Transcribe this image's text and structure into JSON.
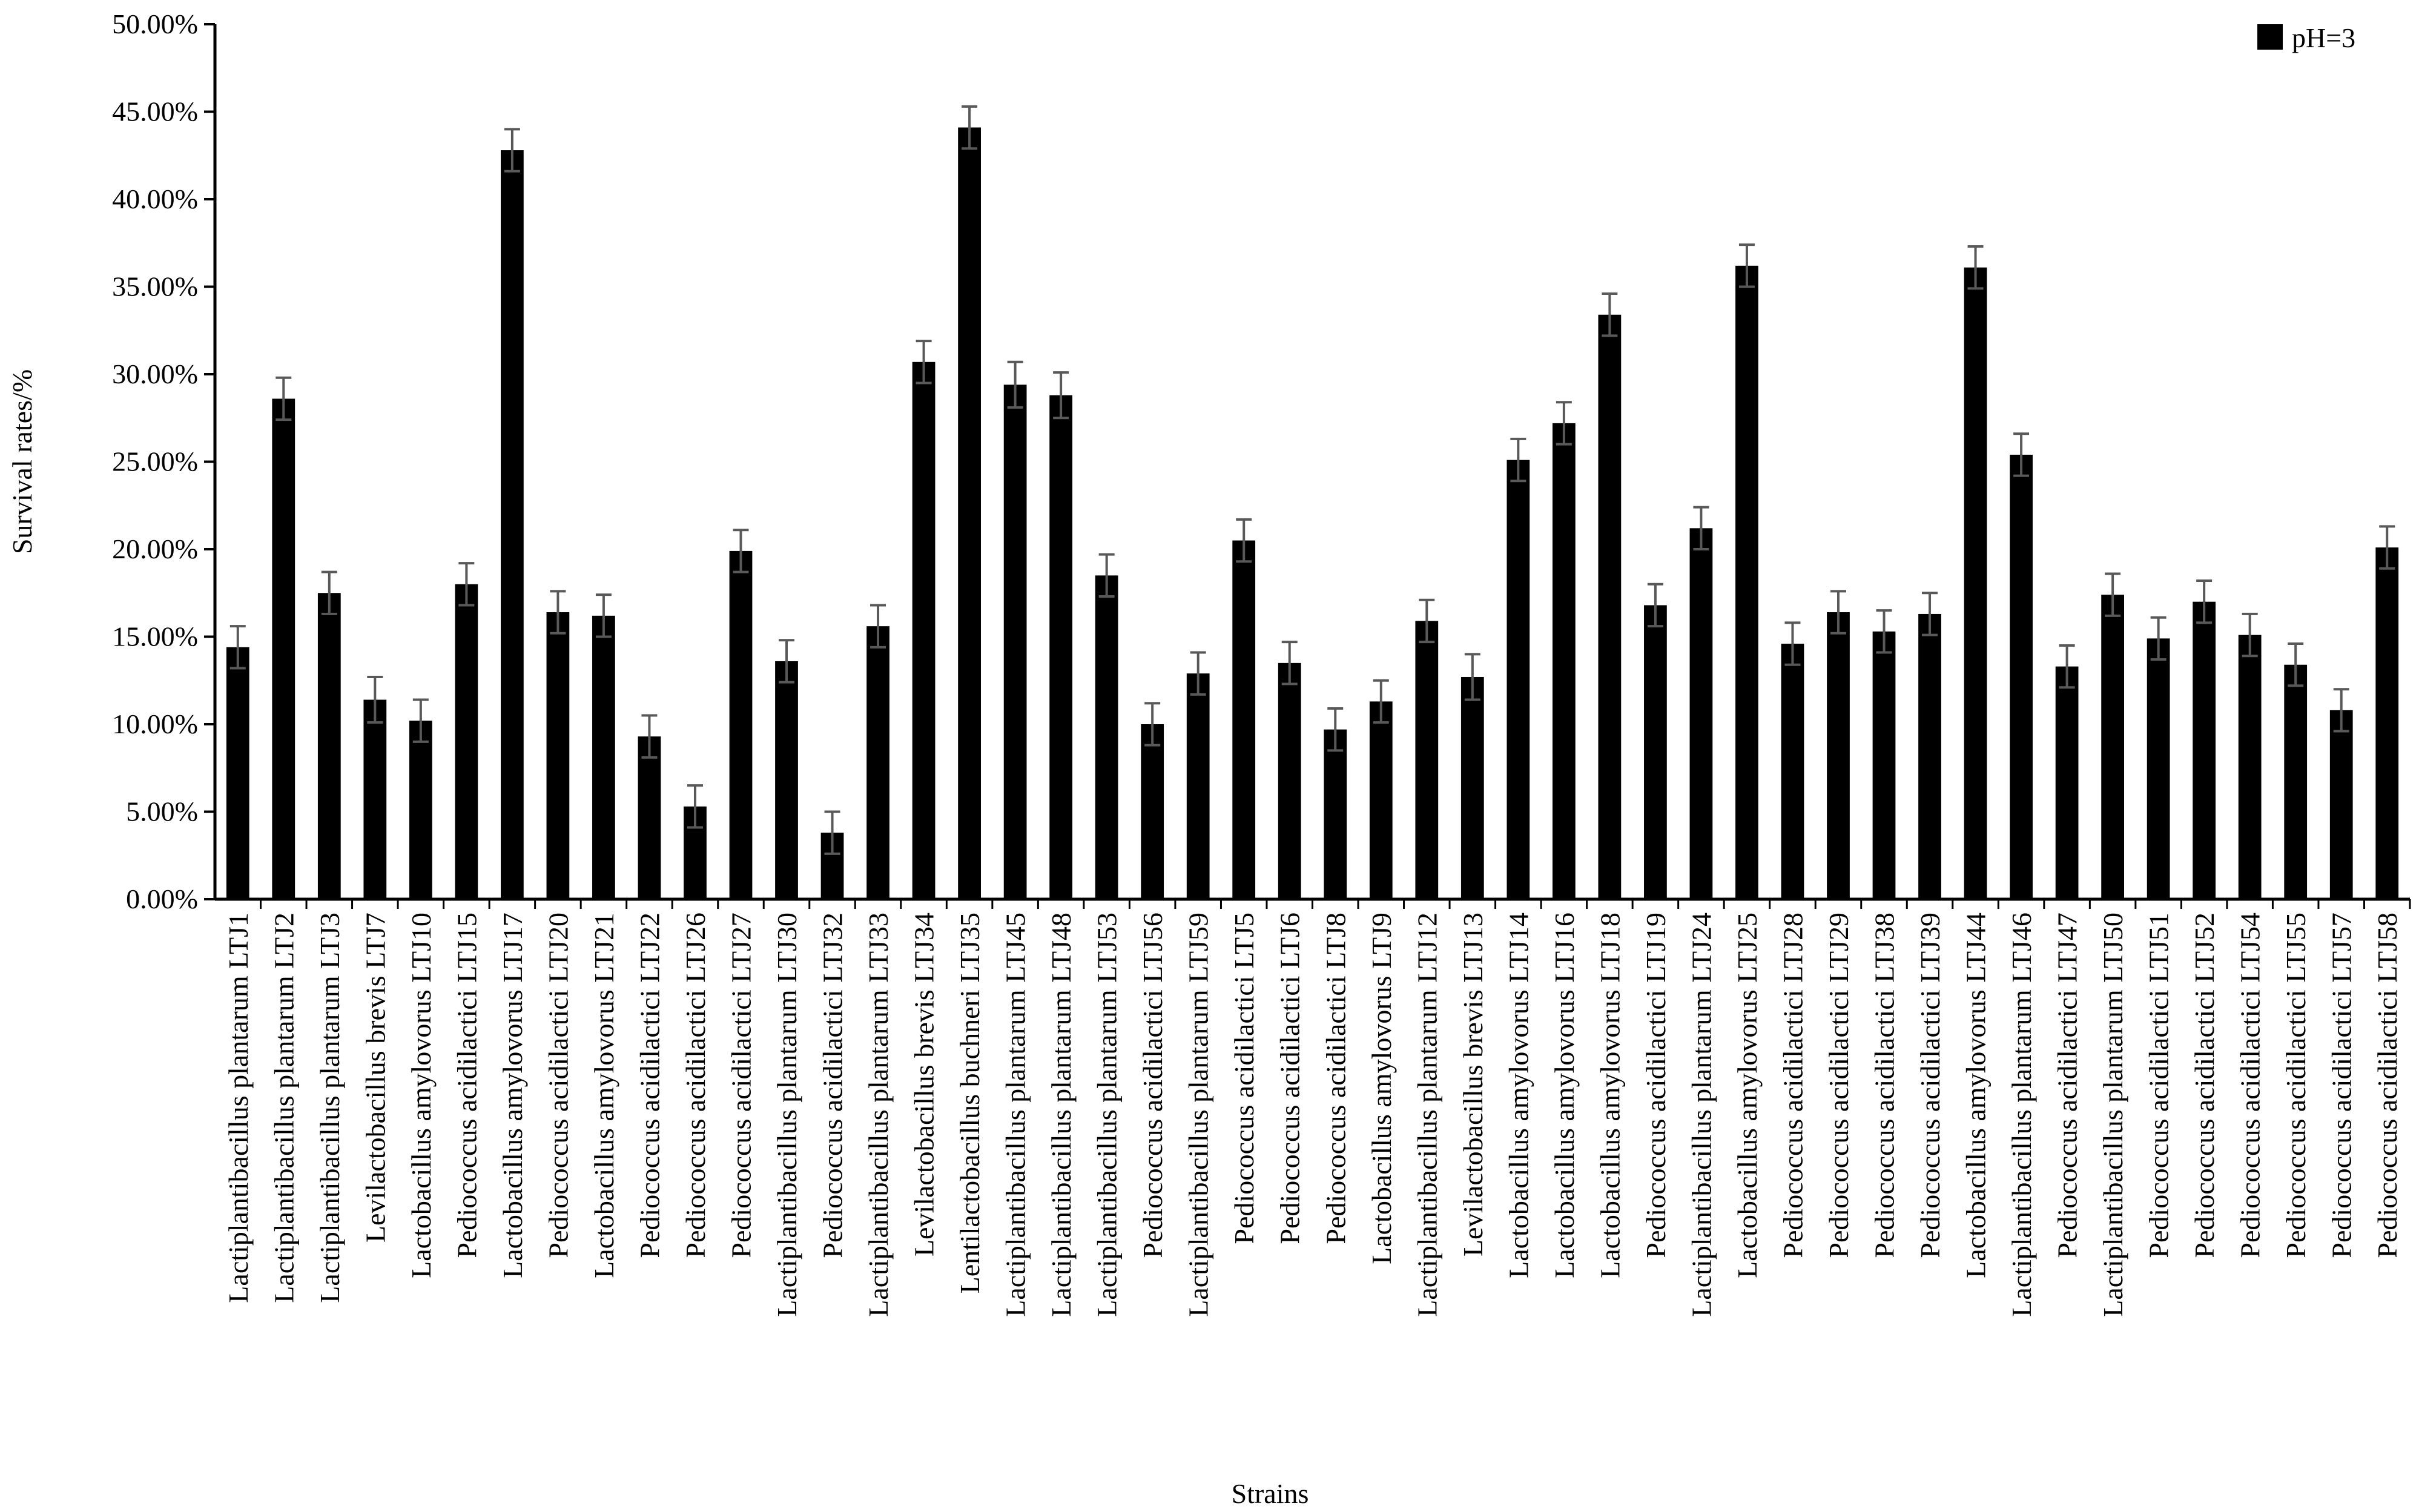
{
  "chart_data": {
    "type": "bar",
    "title": "",
    "xlabel": "Strains",
    "ylabel": "Survival rates/%",
    "ylim": [
      0,
      50
    ],
    "yticks": [
      "0.00%",
      "5.00%",
      "10.00%",
      "15.00%",
      "20.00%",
      "25.00%",
      "30.00%",
      "35.00%",
      "40.00%",
      "45.00%",
      "50.00%"
    ],
    "grid": false,
    "legend_position": "top-right",
    "bar_color": "#000000",
    "error_color": "#595959",
    "series": [
      {
        "name": "pH=3",
        "values": [
          14.4,
          28.6,
          17.5,
          11.4,
          10.2,
          18.0,
          42.8,
          16.4,
          16.2,
          9.3,
          5.3,
          19.9,
          13.6,
          3.8,
          15.6,
          30.7,
          44.1,
          29.4,
          28.8,
          18.5,
          10.0,
          12.9,
          20.5,
          13.5,
          9.7,
          11.3,
          15.9,
          12.7,
          25.1,
          27.2,
          33.4,
          16.8,
          21.2,
          36.2,
          14.6,
          16.4,
          15.3,
          16.3,
          36.1,
          25.4,
          13.3,
          17.4,
          14.9,
          17.0,
          15.1,
          13.4,
          10.8,
          20.1
        ],
        "errors": [
          1.2,
          1.2,
          1.2,
          1.3,
          1.2,
          1.2,
          1.2,
          1.2,
          1.2,
          1.2,
          1.2,
          1.2,
          1.2,
          1.2,
          1.2,
          1.2,
          1.2,
          1.3,
          1.3,
          1.2,
          1.2,
          1.2,
          1.2,
          1.2,
          1.2,
          1.2,
          1.2,
          1.3,
          1.2,
          1.2,
          1.2,
          1.2,
          1.2,
          1.2,
          1.2,
          1.2,
          1.2,
          1.2,
          1.2,
          1.2,
          1.2,
          1.2,
          1.2,
          1.2,
          1.2,
          1.2,
          1.2,
          1.2
        ]
      }
    ],
    "categories": [
      "Lactiplantibacillus plantarum LTJ1",
      "Lactiplantibacillus plantarum LTJ2",
      "Lactiplantibacillus plantarum LTJ3",
      "Levilactobacillus brevis LTJ7",
      "Lactobacillus amylovorus LTJ10",
      "Pediococcus acidilactici LTJ15",
      "Lactobacillus amylovorus LTJ17",
      "Pediococcus acidilactici LTJ20",
      "Lactobacillus amylovorus LTJ21",
      "Pediococcus acidilactici LTJ22",
      "Pediococcus acidilactici LTJ26",
      "Pediococcus acidilactici LTJ27",
      "Lactiplantibacillus plantarum LTJ30",
      "Pediococcus acidilactici LTJ32",
      "Lactiplantibacillus plantarum LTJ33",
      "Levilactobacillus brevis LTJ34",
      "Lentilactobacillus buchneri LTJ35",
      "Lactiplantibacillus plantarum LTJ45",
      "Lactiplantibacillus plantarum LTJ48",
      "Lactiplantibacillus plantarum LTJ53",
      "Pediococcus acidilactici LTJ56",
      "Lactiplantibacillus plantarum LTJ59",
      "Pediococcus acidilactici LTJ5",
      "Pediococcus acidilactici LTJ6",
      "Pediococcus acidilactici LTJ8",
      "Lactobacillus amylovorus LTJ9",
      "Lactiplantibacillus plantarum LTJ12",
      "Levilactobacillus brevis LTJ13",
      "Lactobacillus amylovorus LTJ14",
      "Lactobacillus amylovorus LTJ16",
      "Lactobacillus amylovorus LTJ18",
      "Pediococcus acidilactici LTJ19",
      "Lactiplantibacillus plantarum LTJ24",
      "Lactobacillus amylovorus LTJ25",
      "Pediococcus acidilactici LTJ28",
      "Pediococcus acidilactici LTJ29",
      "Pediococcus acidilactici LTJ38",
      "Pediococcus acidilactici LTJ39",
      "Lactobacillus amylovorus LTJ44",
      "Lactiplantibacillus plantarum LTJ46",
      "Pediococcus acidilactici LTJ47",
      "Lactiplantibacillus plantarum LTJ50",
      "Pediococcus acidilactici LTJ51",
      "Pediococcus acidilactici LTJ52",
      "Pediococcus acidilactici LTJ54",
      "Pediococcus acidilactici LTJ55",
      "Pediococcus acidilactici LTJ57",
      "Pediococcus acidilactici LTJ58"
    ]
  }
}
